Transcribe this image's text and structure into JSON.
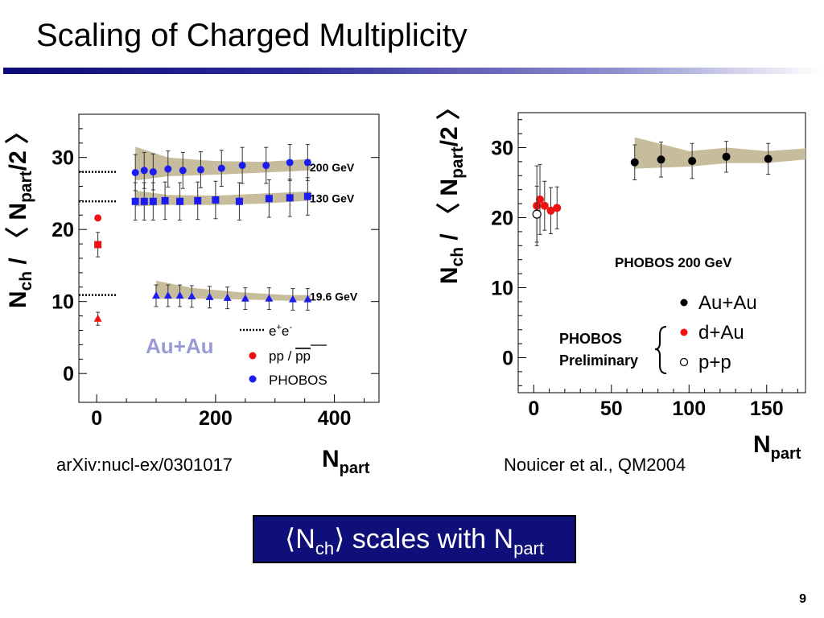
{
  "slide": {
    "title": "Scaling of Charged Multiplicity",
    "left_citation": "arXiv:nucl-ex/0301017",
    "right_citation": "Nouicer et al., QM2004",
    "callout": {
      "open": "⟨N",
      "ch": "ch",
      "mid": "⟩ scales with N",
      "part": "part"
    },
    "page_number": "9"
  },
  "chart_data": [
    {
      "type": "scatter",
      "ylabel": {
        "main": "N",
        "sub1": "ch",
        "mid": " / 〈 N",
        "sub2": "part",
        "end": "/2 〉"
      },
      "xlabel": {
        "main": "N",
        "sub": "part"
      },
      "xlim": [
        -30,
        475
      ],
      "ylim": [
        -4,
        36
      ],
      "x_ticks": [
        "0",
        "200",
        "400"
      ],
      "y_ticks": [
        "0",
        "10",
        "20",
        "30"
      ],
      "panel_label": "Au+Au",
      "series": [
        {
          "name": "200 GeV",
          "color": "#1c1cf0",
          "marker": "circle",
          "x": [
            65,
            80,
            95,
            120,
            145,
            175,
            210,
            245,
            285,
            325,
            355
          ],
          "y": [
            27.9,
            28.2,
            28.0,
            28.4,
            28.2,
            28.3,
            28.5,
            28.9,
            28.9,
            29.3,
            29.3
          ],
          "err": [
            2.5,
            2.5,
            2.5,
            2.5,
            2.5,
            2.5,
            2.5,
            2.5,
            2.5,
            2.5,
            2.5
          ],
          "band": {
            "x": [
              65,
              120,
              200,
              280,
              360
            ],
            "lo": [
              26.8,
              27.4,
              27.6,
              27.9,
              28.2
            ],
            "hi": [
              31.5,
              30.0,
              29.5,
              29.4,
              29.8
            ]
          }
        },
        {
          "name": "130 GeV",
          "color": "#1c1cf0",
          "marker": "square",
          "x": [
            65,
            80,
            95,
            115,
            140,
            170,
            200,
            240,
            290,
            325,
            355
          ],
          "y": [
            23.9,
            23.9,
            23.9,
            24.0,
            23.9,
            24.0,
            24.1,
            23.9,
            24.3,
            24.4,
            24.6
          ],
          "err": [
            2.6,
            2.6,
            2.6,
            2.6,
            2.6,
            2.6,
            2.6,
            2.6,
            2.6,
            2.6,
            2.6
          ],
          "band": {
            "x": [
              65,
              120,
              200,
              280,
              360
            ],
            "lo": [
              23.2,
              23.4,
              23.4,
              23.6,
              24.0
            ],
            "hi": [
              25.4,
              24.8,
              24.7,
              25.0,
              25.3
            ]
          }
        },
        {
          "name": "19.6 GeV",
          "color": "#1c1cf0",
          "marker": "triangle",
          "x": [
            100,
            120,
            140,
            160,
            190,
            220,
            250,
            290,
            330,
            355
          ],
          "y": [
            10.8,
            10.8,
            10.8,
            10.7,
            10.6,
            10.5,
            10.4,
            10.4,
            10.3,
            10.3
          ],
          "err": [
            1.5,
            1.5,
            1.5,
            1.5,
            1.5,
            1.5,
            1.5,
            1.5,
            1.5,
            1.5
          ],
          "band": {
            "x": [
              100,
              160,
              240,
              320,
              360
            ],
            "lo": [
              10.4,
              10.4,
              10.3,
              10.1,
              10.1
            ],
            "hi": [
              12.9,
              11.9,
              11.3,
              10.9,
              10.9
            ]
          }
        },
        {
          "name": "pp / pp",
          "color": "#ee1111",
          "marker": "mixed",
          "points": [
            {
              "x": 2,
              "y": 21.6,
              "err": 0.0,
              "marker": "circle"
            },
            {
              "x": 2,
              "y": 17.9,
              "err": 1.7,
              "marker": "square"
            },
            {
              "x": 2,
              "y": 7.6,
              "err": 0.9,
              "marker": "triangle"
            }
          ]
        },
        {
          "name": "e+e-",
          "color": "#000000",
          "marker": "dotted-line",
          "levels": [
            {
              "y": 28.0,
              "x_end": 35
            },
            {
              "y": 23.9,
              "x_end": 35
            },
            {
              "y": 10.9,
              "x_end": 35
            }
          ]
        }
      ],
      "energy_labels": [
        "200 GeV",
        "130 GeV",
        "19.6 GeV"
      ],
      "legend": {
        "placement": "bottom-right",
        "entries": [
          {
            "label_main": "e",
            "sup1": "+",
            "mid": "e",
            "sup2": "-",
            "style": "dotted"
          },
          {
            "label": "pp / ",
            "overlined": "pp",
            "style": "red-dot"
          },
          {
            "label": "PHOBOS",
            "style": "blue-dot"
          }
        ]
      }
    },
    {
      "type": "scatter",
      "ylabel": {
        "main": "N",
        "sub1": "ch",
        "mid": " / 〈 N",
        "sub2": "part",
        "end": "/2 〉"
      },
      "xlabel": {
        "main": "N",
        "sub": "part"
      },
      "xlim": [
        -10,
        175
      ],
      "ylim": [
        -5,
        35
      ],
      "x_ticks": [
        "0",
        "50",
        "100",
        "150"
      ],
      "y_ticks": [
        "0",
        "10",
        "20",
        "30"
      ],
      "annotation": "PHOBOS 200 GeV",
      "preliminary": [
        "PHOBOS",
        "Preliminary"
      ],
      "series": [
        {
          "name": "Au+Au",
          "color": "#000000",
          "marker": "circle",
          "fill": true,
          "x": [
            65,
            82,
            102,
            124,
            151
          ],
          "y": [
            27.9,
            28.3,
            28.1,
            28.7,
            28.4
          ],
          "err": [
            2.5,
            2.5,
            2.5,
            2.2,
            2.2
          ],
          "band": {
            "x": [
              65,
              100,
              125,
              150,
              175
            ],
            "lo": [
              27.0,
              27.3,
              27.8,
              27.8,
              28.3
            ],
            "hi": [
              31.5,
              29.5,
              30.0,
              29.5,
              29.9
            ]
          }
        },
        {
          "name": "d+Au",
          "color": "#ee1111",
          "marker": "circle",
          "fill": true,
          "x": [
            2,
            4,
            7,
            11,
            15
          ],
          "y": [
            21.7,
            22.6,
            21.7,
            21.0,
            21.4
          ],
          "err": [
            5.7,
            5.0,
            3.5,
            3.3,
            3.0
          ]
        },
        {
          "name": "p+p",
          "color": "#000000",
          "marker": "circle",
          "fill": false,
          "x": [
            2
          ],
          "y": [
            20.5
          ],
          "err": [
            4.0
          ]
        }
      ],
      "legend": {
        "placement": "center-right",
        "entries": [
          "Au+Au",
          "d+Au",
          "p+p"
        ]
      }
    }
  ]
}
